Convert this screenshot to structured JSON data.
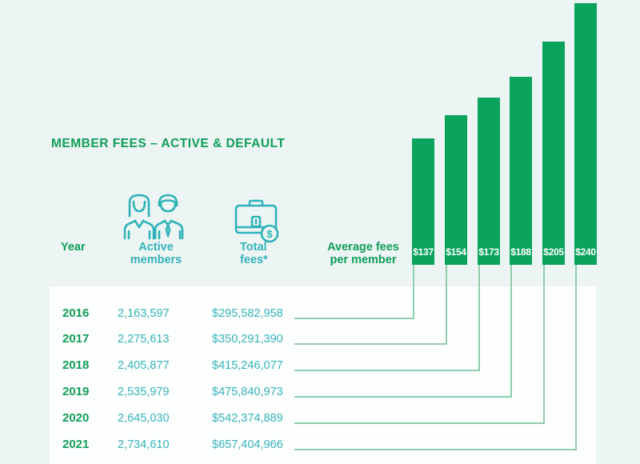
{
  "title": "MEMBER FEES – ACTIVE & DEFAULT",
  "header": {
    "year_label": "Year",
    "active_members_label": [
      "Active",
      "members"
    ],
    "total_fees_label": [
      "Total",
      "fees*"
    ],
    "avg_fees_label": [
      "Average fees",
      "per member"
    ],
    "icons": [
      "two-members-icon",
      "briefcase-dollar-icon"
    ]
  },
  "rows": [
    {
      "year": "2016",
      "active_members": "2,163,597",
      "total_fees": "$295,582,958",
      "avg_fee": "$137"
    },
    {
      "year": "2017",
      "active_members": "2,275,613",
      "total_fees": "$350,291,390",
      "avg_fee": "$154"
    },
    {
      "year": "2018",
      "active_members": "2,405,877",
      "total_fees": "$415,246,077",
      "avg_fee": "$173"
    },
    {
      "year": "2019",
      "active_members": "2,535,979",
      "total_fees": "$475,840,973",
      "avg_fee": "$188"
    },
    {
      "year": "2020",
      "active_members": "2,645,030",
      "total_fees": "$542,374,889",
      "avg_fee": "$205"
    },
    {
      "year": "2021",
      "active_members": "2,734,610",
      "total_fees": "$657,404,966",
      "avg_fee": "$240"
    }
  ],
  "colors": {
    "background": "#ecf5f4",
    "panel": "#fdfefe",
    "bar_green": "#0ba45f",
    "text_green": "#109d58",
    "teal": "#34b3b9",
    "connector_line": "#8fcdad",
    "bar_label": "#ffffff"
  },
  "chart_data": {
    "type": "bar",
    "title": "MEMBER FEES – ACTIVE & DEFAULT",
    "categories": [
      "2016",
      "2017",
      "2018",
      "2019",
      "2020",
      "2021"
    ],
    "series": [
      {
        "name": "Active members",
        "values": [
          2163597,
          2275613,
          2405877,
          2535979,
          2645030,
          2734610
        ]
      },
      {
        "name": "Total fees",
        "values": [
          295582958,
          350291390,
          415246077,
          475840973,
          542374889,
          657404966
        ]
      },
      {
        "name": "Average fees per member",
        "values": [
          137,
          154,
          173,
          188,
          205,
          240
        ]
      }
    ],
    "plotted_series": "Average fees per member",
    "data_labels": [
      "$137",
      "$154",
      "$173",
      "$188",
      "$205",
      "$240"
    ],
    "legend": false,
    "grid": false,
    "axes_shown": false,
    "note": "bars link by leader lines to table rows"
  }
}
